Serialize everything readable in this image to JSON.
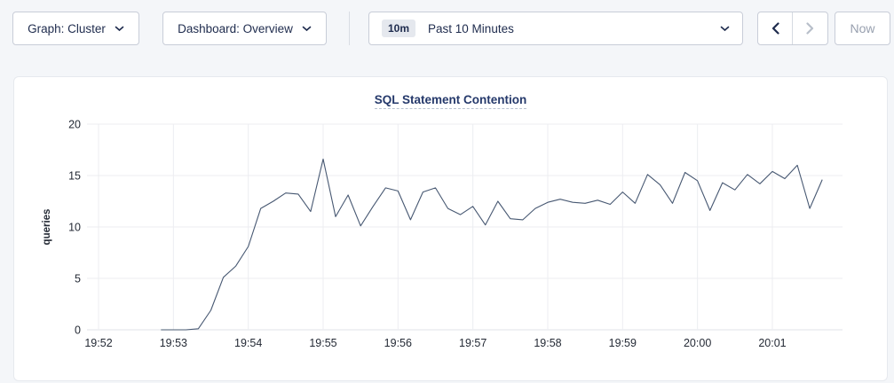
{
  "toolbar": {
    "graph_dropdown": {
      "label": "Graph: Cluster"
    },
    "dashboard_dropdown": {
      "label": "Dashboard: Overview"
    },
    "time_picker": {
      "badge": "10m",
      "label": "Past 10 Minutes"
    },
    "now_button": {
      "label": "Now"
    }
  },
  "colors": {
    "accent_navy": "#1e2b4d",
    "title_blue": "#25396b",
    "line": "#475872",
    "grid": "#ecedf1",
    "baseline": "#e0e3e8",
    "tick_text": "#242a35",
    "disabled": "#b8bfca",
    "page_bg": "#f4f6f9"
  },
  "chart_data": {
    "type": "line",
    "title": "SQL Statement Contention",
    "xlabel": "",
    "ylabel": "queries",
    "ylim": [
      0,
      20
    ],
    "y_ticks": [
      0,
      5,
      10,
      15,
      20
    ],
    "x_ticks": [
      "19:52",
      "19:53",
      "19:54",
      "19:55",
      "19:56",
      "19:57",
      "19:58",
      "19:59",
      "20:00",
      "20:01"
    ],
    "grid": true,
    "legend_position": "none",
    "sample_interval_seconds": 10,
    "series": [
      {
        "name": "queries",
        "color": "#475872",
        "points": [
          [
            "19:52:50",
            0
          ],
          [
            "19:53:00",
            0
          ],
          [
            "19:53:10",
            0
          ],
          [
            "19:53:20",
            0.1
          ],
          [
            "19:53:30",
            1.9
          ],
          [
            "19:53:40",
            5.1
          ],
          [
            "19:53:50",
            6.2
          ],
          [
            "19:54:00",
            8.1
          ],
          [
            "19:54:10",
            11.8
          ],
          [
            "19:54:20",
            12.5
          ],
          [
            "19:54:30",
            13.3
          ],
          [
            "19:54:40",
            13.2
          ],
          [
            "19:54:50",
            11.5
          ],
          [
            "19:55:00",
            16.6
          ],
          [
            "19:55:10",
            11.0
          ],
          [
            "19:55:20",
            13.1
          ],
          [
            "19:55:30",
            10.1
          ],
          [
            "19:55:40",
            12.0
          ],
          [
            "19:55:50",
            13.8
          ],
          [
            "19:56:00",
            13.5
          ],
          [
            "19:56:10",
            10.7
          ],
          [
            "19:56:20",
            13.4
          ],
          [
            "19:56:30",
            13.8
          ],
          [
            "19:56:40",
            11.8
          ],
          [
            "19:56:50",
            11.2
          ],
          [
            "19:57:00",
            12.0
          ],
          [
            "19:57:10",
            10.2
          ],
          [
            "19:57:20",
            12.5
          ],
          [
            "19:57:30",
            10.8
          ],
          [
            "19:57:40",
            10.7
          ],
          [
            "19:57:50",
            11.8
          ],
          [
            "19:58:00",
            12.4
          ],
          [
            "19:58:10",
            12.7
          ],
          [
            "19:58:20",
            12.4
          ],
          [
            "19:58:30",
            12.3
          ],
          [
            "19:58:40",
            12.6
          ],
          [
            "19:58:50",
            12.2
          ],
          [
            "19:59:00",
            13.4
          ],
          [
            "19:59:10",
            12.3
          ],
          [
            "19:59:20",
            15.1
          ],
          [
            "19:59:30",
            14.1
          ],
          [
            "19:59:40",
            12.3
          ],
          [
            "19:59:50",
            15.3
          ],
          [
            "20:00:00",
            14.5
          ],
          [
            "20:00:10",
            11.6
          ],
          [
            "20:00:20",
            14.3
          ],
          [
            "20:00:30",
            13.6
          ],
          [
            "20:00:40",
            15.1
          ],
          [
            "20:00:50",
            14.2
          ],
          [
            "20:01:00",
            15.4
          ],
          [
            "20:01:10",
            14.7
          ],
          [
            "20:01:20",
            16.0
          ],
          [
            "20:01:30",
            11.8
          ],
          [
            "20:01:40",
            14.6
          ]
        ]
      }
    ]
  }
}
